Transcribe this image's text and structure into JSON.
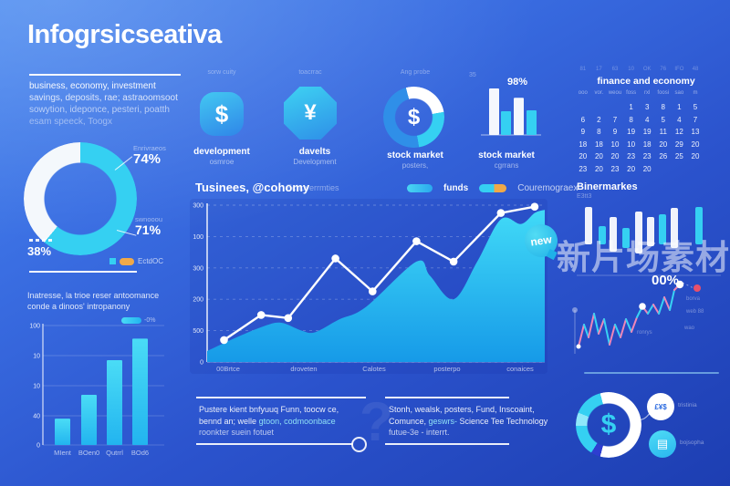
{
  "page": {
    "watermark_badge": "new",
    "watermark_text": "新片场素材"
  },
  "left": {
    "title": "Infogrsicseativa",
    "intro_lines": [
      "business, economy, investment",
      "savings, deposits, rae; astraoomsoot",
      "sowytion, ideponce, pesteri, poatth",
      "esam speeck, Toogx"
    ],
    "performance_heading": [
      "Inatresse, la trioe reser antoomance",
      "conde a dinoos' intropanony"
    ]
  },
  "icons": [
    {
      "caption": "sorw cuity",
      "symbol": "$",
      "label": "development",
      "sublabel": "osmroe"
    },
    {
      "caption": "toacrrac",
      "symbol": "¥",
      "label": "davelts",
      "sublabel": "Development"
    },
    {
      "caption": "Ang probe",
      "symbol": "$",
      "label": "stock market",
      "sublabel": "posters,"
    },
    {
      "caption": "35",
      "symbol": "",
      "label": "stock market",
      "sublabel": "cgrrans"
    }
  ],
  "notes": {
    "a": {
      "l1": "Pustere kient bnfyuuq Funn, toocw ce,",
      "l2a": "bennd an; welle ",
      "l2b": "gtoon, codmoonbace",
      "l3": "roonkter suein  fotuet"
    },
    "b": {
      "l1": "Stonh, wealsk, posters, Fund, Inscoaint,",
      "l2a": "Comunce,  ",
      "l2b": "geswrs- ",
      "l2c": "Science Tee Technology",
      "l3": "futue-3e - interrt."
    },
    "question_mark": "?"
  },
  "right": {
    "bars_title": "Binermarkes",
    "bars_subtitle": "E3tt3",
    "zigzag_notes": [
      "ronrys",
      "borva",
      "web 88",
      "wao"
    ],
    "cluster_symbol": "$",
    "cluster_labels": [
      "tristinia",
      "bojsopha"
    ],
    "circle_a_glyph": "£¥$",
    "circle_b_glyph": "▤"
  },
  "colors": {
    "cyan": "#35d0f2",
    "orange": "#f0a948",
    "pink": "#ef86b8",
    "red": "#e8506a",
    "deep_blue": "#2e3ed0",
    "bg_top": "#4a8af0",
    "bg_bottom": "#1d3eb2"
  },
  "chart_data": [
    {
      "type": "pie",
      "name": "audience-donut",
      "values": [
        61,
        39
      ],
      "colors": [
        "#35d0f2",
        "#f4f8fc"
      ],
      "callouts": [
        {
          "label": "Enrivraeos",
          "value": "74%"
        },
        {
          "label": "swnooou",
          "value": "71%"
        }
      ],
      "side_value": "38%",
      "legend_label": "EctdOC"
    },
    {
      "type": "bar",
      "name": "performance-bars",
      "categories": [
        "MIent",
        "BOen0",
        "Qutrrl",
        "BOd6"
      ],
      "values_pct": [
        22,
        42,
        71,
        89
      ],
      "y_tick_labels": [
        "100",
        "10",
        "10",
        "40",
        "0"
      ],
      "legend_label": "-0%",
      "bar_color": "#31cdf1"
    },
    {
      "type": "area-line",
      "name": "business-economy-trend",
      "title": "Tusinees, @cohomy",
      "subtitle": "Echoverrmties",
      "legend": [
        "funds",
        "Couremograex"
      ],
      "y_tick_labels": [
        "300",
        "100",
        "300",
        "200",
        "500",
        "0"
      ],
      "x_tick_labels": [
        "00Brtce",
        "droveten",
        "Calotes",
        "posterpo",
        "conaices"
      ],
      "line_points_pct": [
        [
          5,
          14
        ],
        [
          16,
          30
        ],
        [
          24,
          28
        ],
        [
          38,
          66
        ],
        [
          49,
          45
        ],
        [
          62,
          77
        ],
        [
          73,
          64
        ],
        [
          87,
          95
        ],
        [
          97,
          99
        ]
      ],
      "area_points_pct": [
        [
          0,
          7
        ],
        [
          9,
          16
        ],
        [
          17,
          23
        ],
        [
          22,
          25
        ],
        [
          28,
          20
        ],
        [
          32,
          19
        ],
        [
          39,
          27
        ],
        [
          47,
          35
        ],
        [
          62,
          64
        ],
        [
          66,
          55
        ],
        [
          73,
          40
        ],
        [
          80,
          64
        ],
        [
          87,
          91
        ],
        [
          93,
          88
        ],
        [
          97,
          95
        ],
        [
          100,
          97
        ]
      ]
    },
    {
      "type": "bar",
      "name": "stock-market-minibar",
      "values_pct": [
        100,
        51,
        80,
        53
      ],
      "bar_colors": [
        "#ffffff",
        "#35d0f2",
        "#ffffff",
        "#35d0f2"
      ],
      "callout": "98%"
    },
    {
      "type": "floating-bar",
      "name": "binermarkes-bars",
      "bars": [
        [
          11,
          7,
          41,
          "w"
        ],
        [
          26,
          28,
          20,
          "c"
        ],
        [
          38,
          18,
          38,
          "w"
        ],
        [
          52,
          30,
          22,
          "c"
        ],
        [
          66,
          12,
          46,
          "w"
        ],
        [
          79,
          18,
          32,
          "w"
        ],
        [
          92,
          15,
          33,
          "c"
        ],
        [
          105,
          8,
          44,
          "w"
        ],
        [
          132,
          7,
          41,
          "c"
        ]
      ]
    },
    {
      "type": "line",
      "name": "trend-zigzag",
      "label": "00%",
      "points": [
        [
          8,
          80
        ],
        [
          14,
          56
        ],
        [
          19,
          70
        ],
        [
          25,
          44
        ],
        [
          30,
          66
        ],
        [
          36,
          50
        ],
        [
          42,
          78
        ],
        [
          48,
          56
        ],
        [
          54,
          70
        ],
        [
          60,
          50
        ],
        [
          66,
          64
        ],
        [
          72,
          48
        ],
        [
          78,
          36
        ],
        [
          84,
          44
        ],
        [
          90,
          34
        ],
        [
          96,
          44
        ],
        [
          102,
          26
        ],
        [
          108,
          40
        ],
        [
          113,
          18
        ],
        [
          119,
          12
        ]
      ],
      "segment_colors": [
        "#ef86b8",
        "#38d2f4"
      ],
      "end_dot": [
        138,
        16
      ],
      "end_dot_color": "#e8506a"
    },
    {
      "type": "donut",
      "name": "allocation-donut",
      "segments": [
        {
          "value": 195,
          "color": "#ffffff"
        },
        {
          "value": 17,
          "color": "#2e3ed0"
        },
        {
          "value": 56,
          "color": "#35d0f2"
        },
        {
          "value": 24,
          "color": "#8fe8fa"
        },
        {
          "value": 53,
          "color": "#35d0f2"
        },
        {
          "value": 15,
          "color": "#ffffff"
        }
      ],
      "center_symbol": "$"
    },
    {
      "type": "table",
      "name": "finance-calendar",
      "title": "finance and economy",
      "header_row": [
        "81",
        "17",
        "63",
        "10",
        "OK",
        "76",
        "IFO",
        "48"
      ],
      "weekday_row": [
        "ooo",
        "vor.",
        "weou",
        "foss",
        "rxl",
        "foosi",
        "sao",
        "m"
      ],
      "rows": [
        [
          "",
          "",
          "",
          "1",
          "3",
          "8",
          "1",
          "5"
        ],
        [
          "6",
          "2",
          "7",
          "8",
          "4",
          "5",
          "4",
          "7"
        ],
        [
          "9",
          "8",
          "9",
          "19",
          "19",
          "11",
          "12",
          "13"
        ],
        [
          "18",
          "18",
          "10",
          "10",
          "18",
          "20",
          "29",
          "20"
        ],
        [
          "20",
          "20",
          "20",
          "23",
          "23",
          "26",
          "25",
          "20"
        ],
        [
          "23",
          "20",
          "23",
          "20",
          "20",
          "",
          "",
          ""
        ]
      ]
    }
  ]
}
